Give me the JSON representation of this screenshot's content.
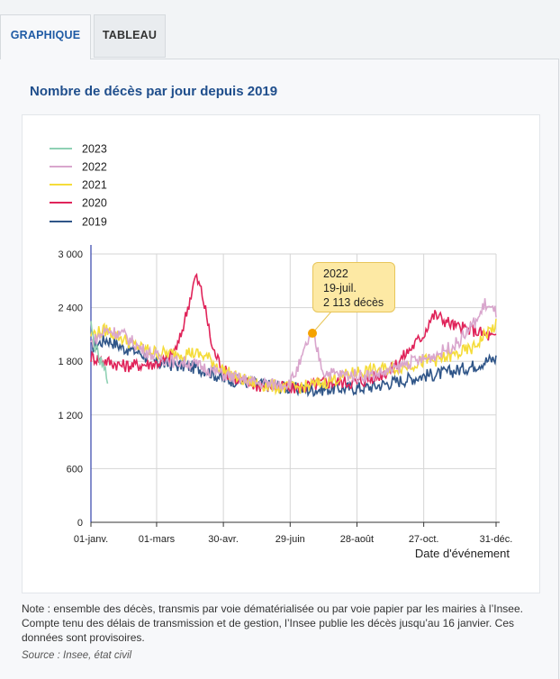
{
  "tabs": [
    {
      "label": "GRAPHIQUE",
      "active": true
    },
    {
      "label": "TABLEAU",
      "active": false
    }
  ],
  "chart_title": "Nombre de décès par jour depuis 2019",
  "tooltip": {
    "year": "2022",
    "date": "19-juil.",
    "value": "2 113 décès"
  },
  "note": "Note : ensemble des décès, transmis par voie dématérialisée ou par voie papier par les mairies à l’Insee. Compte tenu des délais de transmission et de gestion, l’Insee publie les décès jusqu’au 16 janvier. Ces données sont provisoires.",
  "source": "Source : Insee, état civil",
  "colors": {
    "2023": "#8fd1b4",
    "2022": "#d9a6cd",
    "2021": "#f5dc3a",
    "2020": "#e0245a",
    "2019": "#2f5588",
    "tooltip_point": "#f5a200"
  },
  "chart_data": {
    "type": "line",
    "xlabel": "Date d'événement",
    "ylabel": "",
    "ylim": [
      0,
      3000
    ],
    "yticks": [
      "0",
      "600",
      "1 200",
      "1 800",
      "2 400",
      "3 000"
    ],
    "yticks_values": [
      0,
      600,
      1200,
      1800,
      2400,
      3000
    ],
    "xticks": [
      "01-janv.",
      "01-mars",
      "30-avr.",
      "29-juin",
      "28-août",
      "27-oct.",
      "31-déc."
    ],
    "xticks_days": [
      1,
      60,
      120,
      180,
      240,
      300,
      365
    ],
    "grid": true,
    "legend_position": "top-left",
    "series": [
      {
        "name": "2023",
        "x": [
          1,
          3,
          5,
          7,
          9,
          11,
          13,
          15,
          16
        ],
        "values": [
          2200,
          2050,
          1950,
          1880,
          1800,
          1750,
          1700,
          1640,
          1620
        ]
      },
      {
        "name": "2022",
        "x": [
          1,
          15,
          30,
          45,
          60,
          75,
          90,
          105,
          120,
          135,
          150,
          165,
          180,
          190,
          195,
          200,
          210,
          225,
          240,
          255,
          270,
          285,
          300,
          315,
          330,
          340,
          350,
          355,
          360,
          365
        ],
        "values": [
          2000,
          2150,
          2100,
          1950,
          1850,
          1800,
          1780,
          1720,
          1650,
          1600,
          1560,
          1540,
          1560,
          1800,
          2000,
          2113,
          1680,
          1650,
          1640,
          1650,
          1690,
          1780,
          1820,
          1900,
          2000,
          2150,
          2300,
          2450,
          2380,
          2350
        ]
      },
      {
        "name": "2021",
        "x": [
          1,
          15,
          30,
          45,
          60,
          75,
          90,
          105,
          120,
          135,
          150,
          165,
          180,
          195,
          210,
          225,
          240,
          255,
          270,
          285,
          300,
          315,
          330,
          345,
          355,
          365
        ],
        "values": [
          2100,
          2150,
          2050,
          1950,
          1900,
          1880,
          1900,
          1850,
          1700,
          1600,
          1550,
          1520,
          1500,
          1520,
          1560,
          1620,
          1680,
          1700,
          1720,
          1750,
          1800,
          1820,
          1880,
          1950,
          2100,
          2200
        ]
      },
      {
        "name": "2020",
        "x": [
          1,
          15,
          30,
          45,
          60,
          70,
          80,
          90,
          95,
          100,
          105,
          110,
          120,
          135,
          150,
          165,
          180,
          195,
          210,
          225,
          240,
          255,
          270,
          285,
          300,
          305,
          310,
          320,
          330,
          345,
          355,
          365
        ],
        "values": [
          1850,
          1800,
          1750,
          1760,
          1780,
          1820,
          2000,
          2500,
          2750,
          2600,
          2300,
          1950,
          1700,
          1580,
          1530,
          1520,
          1500,
          1520,
          1560,
          1570,
          1560,
          1620,
          1700,
          1900,
          2100,
          2250,
          2320,
          2250,
          2180,
          2150,
          2100,
          2050
        ]
      },
      {
        "name": "2019",
        "x": [
          1,
          15,
          30,
          45,
          60,
          75,
          90,
          105,
          120,
          135,
          150,
          165,
          180,
          195,
          210,
          225,
          240,
          255,
          270,
          285,
          300,
          315,
          330,
          345,
          355,
          365
        ],
        "values": [
          1950,
          2050,
          1950,
          1900,
          1780,
          1760,
          1740,
          1700,
          1600,
          1580,
          1550,
          1520,
          1500,
          1480,
          1490,
          1500,
          1500,
          1520,
          1560,
          1600,
          1640,
          1660,
          1700,
          1750,
          1800,
          1830
        ]
      }
    ]
  }
}
